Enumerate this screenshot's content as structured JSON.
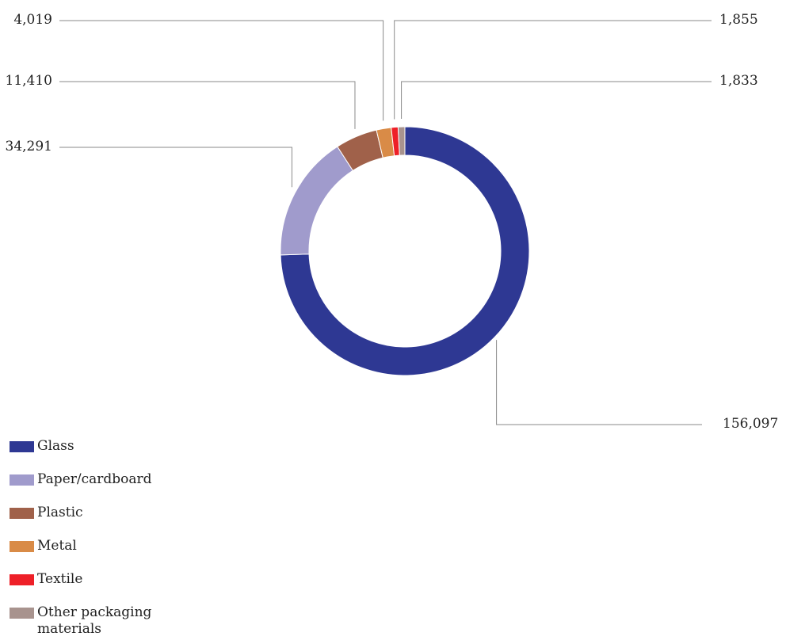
{
  "chart_data": {
    "type": "pie",
    "title": "",
    "donut": true,
    "series": [
      {
        "name": "Glass",
        "value": 156097,
        "label": "156,097",
        "color": "#2e3893"
      },
      {
        "name": "Paper/cardboard",
        "value": 34291,
        "label": "34,291",
        "color": "#a09bcc"
      },
      {
        "name": "Plastic",
        "value": 11410,
        "label": "11,410",
        "color": "#a0614a"
      },
      {
        "name": "Metal",
        "value": 4019,
        "label": "4,019",
        "color": "#d98b47"
      },
      {
        "name": "Textile",
        "value": 1855,
        "label": "1,855",
        "color": "#ee2028"
      },
      {
        "name": "Other packaging materials",
        "value": 1833,
        "label": "1,833",
        "color": "#a8938e"
      }
    ],
    "legend_position": "bottom-left"
  },
  "legend": {
    "items": [
      {
        "label": "Glass"
      },
      {
        "label": "Paper/cardboard"
      },
      {
        "label": "Plastic"
      },
      {
        "label": "Metal"
      },
      {
        "label": "Textile"
      },
      {
        "label": "Other packaging materials"
      }
    ]
  }
}
